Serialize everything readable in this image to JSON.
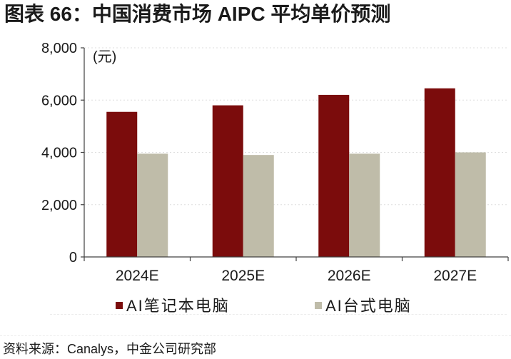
{
  "source": "资料来源：Canalys，中金公司研究部",
  "chart_data": {
    "type": "bar",
    "title": "图表 66：中国消费市场 AIPC 平均单价预测",
    "xlabel": "",
    "ylabel": "(元)",
    "categories": [
      "2024E",
      "2025E",
      "2026E",
      "2027E"
    ],
    "series": [
      {
        "name": "AI笔记本电脑",
        "color": "#7B0C0C",
        "values": [
          5550,
          5800,
          6200,
          6450
        ]
      },
      {
        "name": "AI台式电脑",
        "color": "#BFBCA9",
        "values": [
          3950,
          3900,
          3950,
          4000
        ]
      }
    ],
    "ylim": [
      0,
      8000
    ],
    "yticks": [
      0,
      2000,
      4000,
      6000,
      8000
    ],
    "ytick_labels": [
      "0",
      "2,000",
      "4,000",
      "6,000",
      "8,000"
    ],
    "grid": true,
    "legend": "bottom"
  },
  "colors": {
    "text": "#1A1A1A",
    "axis": "#404040",
    "grid": "#DEDEDE"
  }
}
